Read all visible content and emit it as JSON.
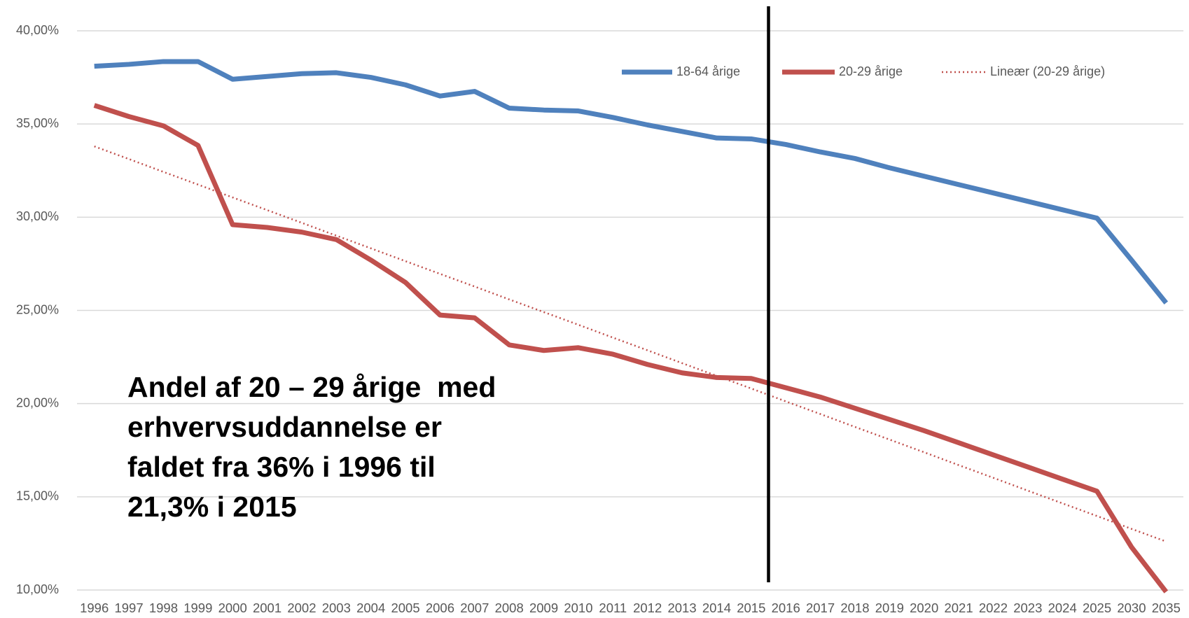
{
  "chart_data": {
    "type": "line",
    "categories": [
      "1996",
      "1997",
      "1998",
      "1999",
      "2000",
      "2001",
      "2002",
      "2003",
      "2004",
      "2005",
      "2006",
      "2007",
      "2008",
      "2009",
      "2010",
      "2011",
      "2012",
      "2013",
      "2014",
      "2015",
      "2016",
      "2017",
      "2018",
      "2019",
      "2020",
      "2021",
      "2022",
      "2023",
      "2024",
      "2025",
      "2030",
      "2035"
    ],
    "series": [
      {
        "name": "18-64 årige",
        "color": "#4f81bd",
        "dash": "solid",
        "values": [
          38.1,
          38.2,
          38.35,
          38.35,
          37.4,
          37.55,
          37.7,
          37.75,
          37.5,
          37.1,
          36.5,
          36.75,
          35.85,
          35.75,
          35.7,
          35.35,
          34.95,
          34.6,
          34.25,
          34.2,
          33.9,
          33.5,
          33.15,
          32.65,
          32.2,
          31.75,
          31.3,
          30.85,
          30.4,
          29.95,
          27.7,
          25.4
        ]
      },
      {
        "name": "20-29 årige",
        "color": "#c0504d",
        "dash": "solid",
        "values": [
          36.0,
          35.4,
          34.9,
          33.85,
          29.6,
          29.45,
          29.2,
          28.8,
          27.7,
          26.5,
          24.75,
          24.6,
          23.15,
          22.85,
          23.0,
          22.65,
          22.1,
          21.65,
          21.4,
          21.35,
          20.85,
          20.35,
          19.75,
          19.15,
          18.55,
          17.9,
          17.25,
          16.6,
          15.95,
          15.3,
          12.3,
          9.9
        ]
      },
      {
        "name": "Lineær (20-29 årige)",
        "color": "#c0504d",
        "dash": "dotted",
        "values": [
          33.8,
          33.12,
          32.43,
          31.75,
          31.06,
          30.38,
          29.7,
          29.01,
          28.33,
          27.64,
          26.96,
          26.28,
          25.59,
          24.91,
          24.23,
          23.54,
          22.86,
          22.17,
          21.49,
          20.81,
          20.12,
          19.44,
          18.75,
          18.07,
          17.39,
          16.7,
          16.02,
          15.33,
          14.65,
          13.97,
          13.28,
          12.6
        ]
      }
    ],
    "ylim": [
      10,
      40
    ],
    "yticks": [
      {
        "value": 10,
        "label": "10,00%"
      },
      {
        "value": 15,
        "label": "15,00%"
      },
      {
        "value": 20,
        "label": "20,00%"
      },
      {
        "value": 25,
        "label": "25,00%"
      },
      {
        "value": 30,
        "label": "30,00%"
      },
      {
        "value": 35,
        "label": "35,00%"
      },
      {
        "value": 40,
        "label": "40,00%"
      }
    ],
    "grid": true,
    "legend": "top-right",
    "annotation": [
      "Andel af 20 – 29 årige  med",
      "erhvervsuddannelse er",
      "faldet fra 36% i 1996 til",
      "21,3% i 2015"
    ]
  }
}
